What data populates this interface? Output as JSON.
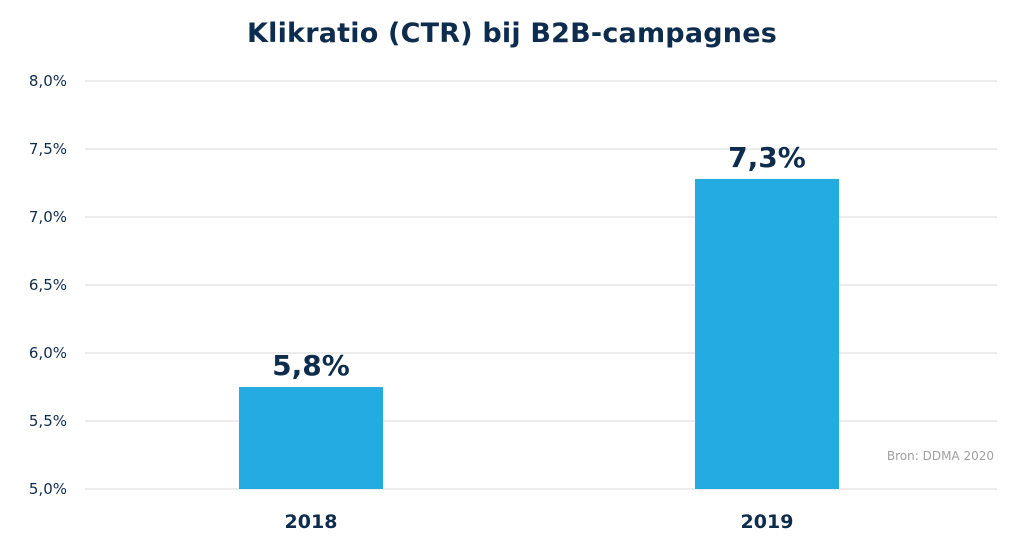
{
  "chart_data": {
    "type": "bar",
    "title": "Klikratio (CTR) bij B2B-campagnes",
    "categories": [
      "2018",
      "2019"
    ],
    "values": [
      5.75,
      7.28
    ],
    "data_labels": [
      "5,8%",
      "7,3%"
    ],
    "yticks": [
      {
        "value": 5.0,
        "label": "5,0%"
      },
      {
        "value": 5.5,
        "label": "5,5%"
      },
      {
        "value": 6.0,
        "label": "6,0%"
      },
      {
        "value": 6.5,
        "label": "6,5%"
      },
      {
        "value": 7.0,
        "label": "7,0%"
      },
      {
        "value": 7.5,
        "label": "7,5%"
      },
      {
        "value": 8.0,
        "label": "8,0%"
      }
    ],
    "ylim": [
      5.0,
      8.0
    ],
    "grid": true,
    "bar_color": "#24abe2",
    "text_color": "#0e2c4e",
    "source": "Bron: DDMA 2020"
  }
}
